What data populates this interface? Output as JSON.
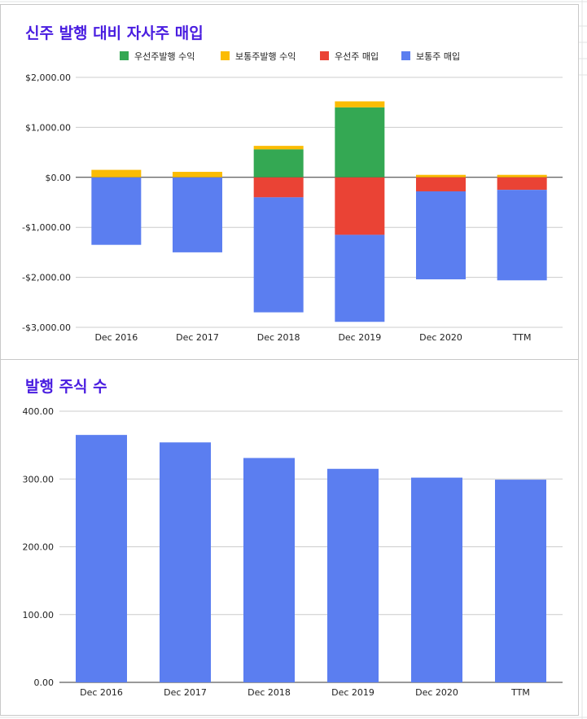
{
  "colors": {
    "title": "#4a1ee0",
    "preferred_issued": "#34a853",
    "common_issued": "#fbbc04",
    "preferred_repurchased": "#ea4335",
    "common_repurchased": "#5b7ef0"
  },
  "chart_data": [
    {
      "type": "bar",
      "stacked": true,
      "title": "신주 발행 대비 자사주 매입",
      "categories": [
        "Dec 2016",
        "Dec 2017",
        "Dec 2018",
        "Dec 2019",
        "Dec 2020",
        "TTM"
      ],
      "series": [
        {
          "name": "우선주발행 수익",
          "color": "#34a853",
          "values": [
            0,
            0,
            560,
            1400,
            0,
            0
          ]
        },
        {
          "name": "보통주발행 수익",
          "color": "#fbbc04",
          "values": [
            150,
            110,
            70,
            120,
            50,
            50
          ]
        },
        {
          "name": "우선주 매입",
          "color": "#ea4335",
          "values": [
            0,
            0,
            -400,
            -1150,
            -280,
            -250
          ]
        },
        {
          "name": "보통주 매입",
          "color": "#5b7ef0",
          "values": [
            -1350,
            -1500,
            -2300,
            -1740,
            -1760,
            -1810
          ]
        }
      ],
      "ylim": [
        -3000,
        2000
      ],
      "yticks": [
        2000,
        1000,
        0,
        -1000,
        -2000,
        -3000
      ],
      "ytick_labels": [
        "$2,000.00",
        "$1,000.00",
        "$0.00",
        "-$1,000.00",
        "-$2,000.00",
        "-$3,000.00"
      ],
      "legend": "top",
      "grid": true
    },
    {
      "type": "bar",
      "title": "발행 주식 수",
      "categories": [
        "Dec 2016",
        "Dec 2017",
        "Dec 2018",
        "Dec 2019",
        "Dec 2020",
        "TTM"
      ],
      "values": [
        365,
        354,
        331,
        315,
        302,
        299
      ],
      "color": "#5b7ef0",
      "ylim": [
        0,
        400
      ],
      "yticks": [
        400,
        300,
        200,
        100,
        0
      ],
      "ytick_labels": [
        "400.00",
        "300.00",
        "200.00",
        "100.00",
        "0.00"
      ],
      "grid": true
    }
  ]
}
